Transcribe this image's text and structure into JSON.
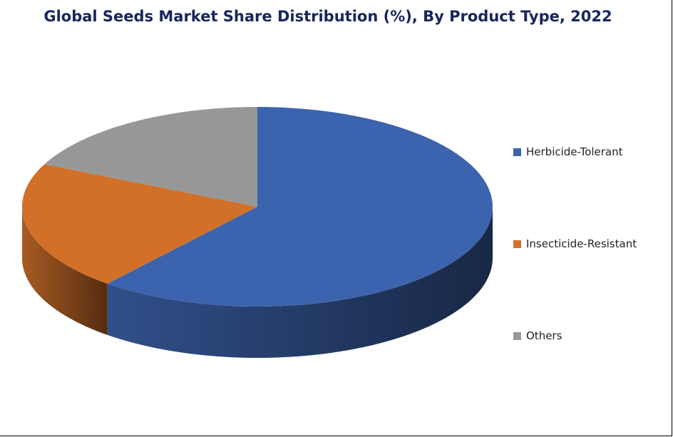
{
  "chart_data": {
    "type": "pie",
    "style": "3d",
    "title": "Global Seeds Market Share Distribution (%), By Product Type, 2022",
    "categories": [
      "Herbicide-Tolerant",
      "Insecticide-Resistant",
      "Others"
    ],
    "values": [
      61,
      21,
      18
    ],
    "colors": [
      "#3c63ad",
      "#d2702a",
      "#979797"
    ],
    "legend_position": "right"
  }
}
